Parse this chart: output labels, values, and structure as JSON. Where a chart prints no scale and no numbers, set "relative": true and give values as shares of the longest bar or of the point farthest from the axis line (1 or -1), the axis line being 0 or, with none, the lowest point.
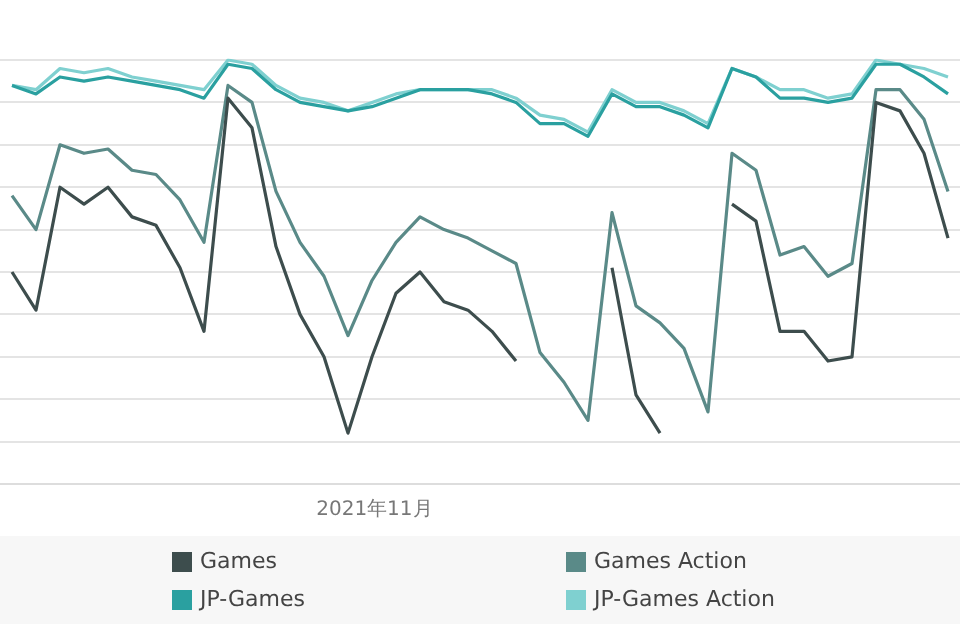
{
  "chart_data": {
    "type": "line",
    "relative": true,
    "grid": "y",
    "legend": "bottom",
    "marker": "none",
    "line_style": "solid",
    "categories": [
      null,
      null,
      null,
      null,
      null,
      null,
      null,
      null,
      null,
      null,
      null,
      null,
      null,
      null,
      null,
      null,
      null,
      null,
      null,
      null,
      null,
      null,
      null,
      null,
      null,
      null,
      null,
      null,
      null,
      null,
      null,
      null,
      null,
      null,
      null,
      null,
      null,
      null,
      null,
      null
    ],
    "annotations": [
      "2021年11月"
    ],
    "series": [
      {
        "name": "Games",
        "color": "#3d4d4d",
        "values": [
          0.5,
          0.41,
          0.7,
          0.66,
          0.7,
          0.63,
          0.61,
          0.51,
          0.36,
          0.91,
          0.84,
          0.56,
          0.4,
          0.3,
          0.12,
          0.3,
          0.45,
          0.5,
          0.43,
          0.41,
          0.36,
          0.29,
          null,
          null,
          null,
          0.51,
          0.21,
          0.12,
          null,
          null,
          0.66,
          0.62,
          0.36,
          0.36,
          0.29,
          0.3,
          0.9,
          0.88,
          0.78,
          0.58
        ]
      },
      {
        "name": "Games Action",
        "color": "#5a8a88",
        "values": [
          0.68,
          0.6,
          0.8,
          0.78,
          0.79,
          0.74,
          0.73,
          0.67,
          0.57,
          0.94,
          0.9,
          0.69,
          0.57,
          0.49,
          0.35,
          0.48,
          0.57,
          0.63,
          0.6,
          0.58,
          0.55,
          0.52,
          0.31,
          0.24,
          0.15,
          0.64,
          0.42,
          0.38,
          0.32,
          0.17,
          0.78,
          0.74,
          0.54,
          0.56,
          0.49,
          0.52,
          0.93,
          0.93,
          0.86,
          0.69
        ]
      },
      {
        "name": "JP-Games",
        "color": "#2aa0a0",
        "values": [
          0.94,
          0.92,
          0.96,
          0.95,
          0.96,
          0.95,
          0.94,
          0.93,
          0.91,
          0.99,
          0.98,
          0.93,
          0.9,
          0.89,
          0.88,
          0.89,
          0.91,
          0.93,
          0.93,
          0.93,
          0.92,
          0.9,
          0.85,
          0.85,
          0.82,
          0.92,
          0.89,
          0.89,
          0.87,
          0.84,
          0.98,
          0.96,
          0.91,
          0.91,
          0.9,
          0.91,
          0.99,
          0.99,
          0.96,
          0.92
        ]
      },
      {
        "name": "JP-Games Action",
        "color": "#7fd0d0",
        "values": [
          0.94,
          0.93,
          0.98,
          0.97,
          0.98,
          0.96,
          0.95,
          0.94,
          0.93,
          1,
          0.99,
          0.94,
          0.91,
          0.9,
          0.88,
          0.9,
          0.92,
          0.93,
          0.93,
          0.93,
          0.93,
          0.91,
          0.87,
          0.86,
          0.83,
          0.93,
          0.9,
          0.9,
          0.88,
          0.85,
          0.98,
          0.96,
          0.93,
          0.93,
          0.91,
          0.92,
          1,
          0.99,
          0.98,
          0.96
        ]
      }
    ]
  }
}
